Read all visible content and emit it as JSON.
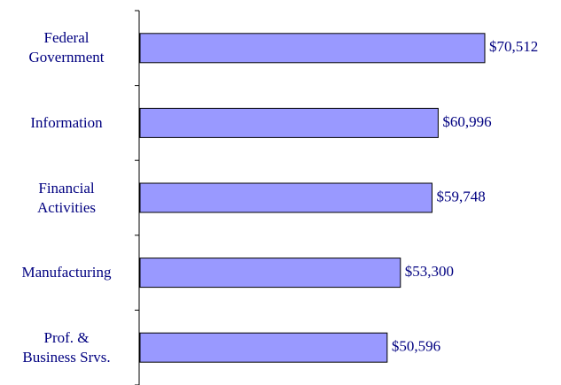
{
  "chart_data": {
    "type": "bar",
    "orientation": "horizontal",
    "categories": [
      "Federal\nGovernment",
      "Information",
      "Financial\nActivities",
      "Manufacturing",
      "Prof. &\nBusiness Srvs."
    ],
    "values": [
      70512,
      60996,
      59748,
      53300,
      50596
    ],
    "value_labels": [
      "$70,512",
      "$60,996",
      "$59,748",
      "$53,300",
      "$50,596"
    ],
    "color": "#9999ff"
  }
}
